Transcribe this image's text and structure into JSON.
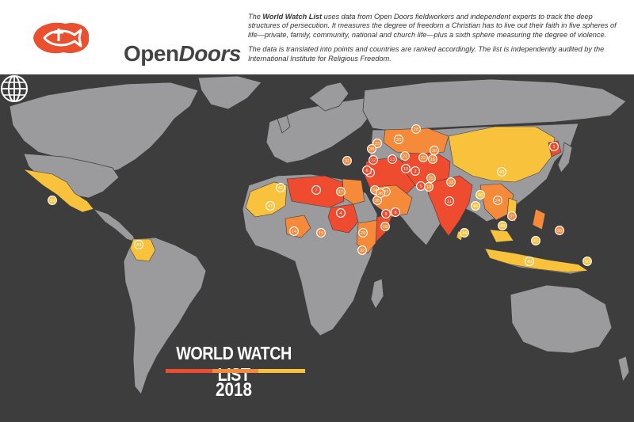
{
  "brand": {
    "name_part1": "Open",
    "name_part2": "Doors",
    "logo_color": "#e8502f"
  },
  "description": {
    "p1_bold": "World Watch List",
    "p1_pre": "The ",
    "p1_rest": " uses data from Open Doors fieldworkers and independent experts to track the deep structures of persecution. It measures the degree of freedom a Christian has to live out their faith in five spheres of life—private, family, community, national and church life—plus a sixth sphere measuring the degree of violence.",
    "p2": "The data is translated into points and countries are ranked accordingly. The list is independently audited by the International Institute for Religious Freedom."
  },
  "title": {
    "main": "WORLD WATCH LIST",
    "year": "2018"
  },
  "colors": {
    "background": "#3d3d3e",
    "land": "#9b9b9d",
    "extreme": "#ef4b2f",
    "very_high": "#f58a3a",
    "high": "#f9c23c",
    "bar": [
      "#ef4b2f",
      "#f58a3a",
      "#f9c23c"
    ]
  },
  "ranks": [
    {
      "rank": "1",
      "level": "extreme"
    },
    {
      "rank": "2",
      "level": "extreme"
    },
    {
      "rank": "3",
      "level": "extreme"
    },
    {
      "rank": "4",
      "level": "extreme"
    },
    {
      "rank": "5",
      "level": "extreme"
    },
    {
      "rank": "6",
      "level": "extreme"
    },
    {
      "rank": "7",
      "level": "extreme"
    },
    {
      "rank": "8",
      "level": "extreme"
    },
    {
      "rank": "9",
      "level": "extreme"
    },
    {
      "rank": "10",
      "level": "extreme"
    },
    {
      "rank": "11",
      "level": "extreme"
    },
    {
      "rank": "12",
      "level": "extreme"
    },
    {
      "rank": "13",
      "level": "extreme"
    },
    {
      "rank": "14",
      "level": "very_high"
    },
    {
      "rank": "15",
      "level": "very_high"
    },
    {
      "rank": "16",
      "level": "very_high"
    },
    {
      "rank": "17",
      "level": "very_high"
    },
    {
      "rank": "18",
      "level": "very_high"
    },
    {
      "rank": "19",
      "level": "very_high"
    },
    {
      "rank": "20",
      "level": "very_high"
    },
    {
      "rank": "21",
      "level": "very_high"
    },
    {
      "rank": "22",
      "level": "very_high"
    },
    {
      "rank": "23",
      "level": "very_high"
    },
    {
      "rank": "24",
      "level": "very_high"
    },
    {
      "rank": "25",
      "level": "very_high"
    },
    {
      "rank": "26",
      "level": "very_high"
    },
    {
      "rank": "27",
      "level": "very_high"
    },
    {
      "rank": "28",
      "level": "very_high"
    },
    {
      "rank": "29",
      "level": "very_high"
    },
    {
      "rank": "30",
      "level": "very_high"
    },
    {
      "rank": "31",
      "level": "very_high"
    },
    {
      "rank": "32",
      "level": "very_high"
    },
    {
      "rank": "33",
      "level": "very_high"
    },
    {
      "rank": "34",
      "level": "very_high"
    },
    {
      "rank": "35",
      "level": "very_high"
    },
    {
      "rank": "36",
      "level": "very_high"
    },
    {
      "rank": "37",
      "level": "very_high"
    },
    {
      "rank": "38",
      "level": "very_high"
    },
    {
      "rank": "39",
      "level": "high"
    },
    {
      "rank": "40",
      "level": "high"
    },
    {
      "rank": "41",
      "level": "high"
    },
    {
      "rank": "42",
      "level": "high"
    },
    {
      "rank": "43",
      "level": "high"
    },
    {
      "rank": "44",
      "level": "high"
    },
    {
      "rank": "45",
      "level": "high"
    },
    {
      "rank": "46",
      "level": "high"
    },
    {
      "rank": "47",
      "level": "high"
    },
    {
      "rank": "48",
      "level": "high"
    },
    {
      "rank": "49",
      "level": "high"
    },
    {
      "rank": "50",
      "level": "high"
    }
  ]
}
